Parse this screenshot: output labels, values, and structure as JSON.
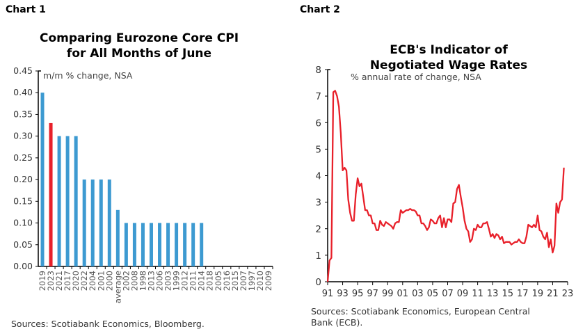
{
  "chart_data": [
    {
      "type": "bar",
      "label": "Chart 1",
      "title": "Comparing Eurozone Core CPI for All Months of June",
      "title_lines": [
        "Comparing Eurozone Core CPI",
        "for All Months of June"
      ],
      "units_note": "m/m % change, NSA",
      "source": "Sources: Scotiabank Economics, Bloomberg.",
      "categories": [
        "2019",
        "2023",
        "2021",
        "2017",
        "2020",
        "2022",
        "2004",
        "2001",
        "2000",
        "average",
        "2002",
        "2008",
        "1998",
        "2013",
        "2006",
        "2003",
        "1999",
        "2012",
        "2011",
        "2014",
        "2018",
        "2005",
        "2016",
        "2015",
        "2007",
        "1997",
        "2010",
        "2009"
      ],
      "values": [
        0.4,
        0.33,
        0.3,
        0.3,
        0.3,
        0.2,
        0.2,
        0.2,
        0.2,
        0.13,
        0.1,
        0.1,
        0.1,
        0.1,
        0.1,
        0.1,
        0.1,
        0.1,
        0.1,
        0.1,
        0,
        0,
        0,
        0,
        0,
        0,
        0,
        0
      ],
      "highlight_category": "2023",
      "ylim": [
        0,
        0.45
      ],
      "yticks": [
        "0.00",
        "0.05",
        "0.10",
        "0.15",
        "0.20",
        "0.25",
        "0.30",
        "0.35",
        "0.40",
        "0.45"
      ],
      "grid": false,
      "colors": {
        "bar": "#3d9ad1",
        "highlight": "#e8202a"
      }
    },
    {
      "type": "line",
      "label": "Chart 2",
      "title": "ECB's Indicator of Negotiated Wage Rates",
      "title_lines": [
        "ECB's Indicator of",
        "Negotiated Wage Rates"
      ],
      "units_note": "% annual rate of change, NSA",
      "source_lines": [
        "Sources: Scotiabank Economics, European Central",
        "Bank (ECB)."
      ],
      "ylim": [
        0,
        8
      ],
      "yticks": [
        "0",
        "1",
        "2",
        "3",
        "4",
        "5",
        "6",
        "7",
        "8"
      ],
      "xlim": [
        1991,
        2023
      ],
      "xticks": [
        "91",
        "93",
        "95",
        "97",
        "99",
        "01",
        "03",
        "05",
        "07",
        "09",
        "11",
        "13",
        "15",
        "17",
        "19",
        "21",
        "23"
      ],
      "grid": false,
      "colors": {
        "line": "#e8202a"
      },
      "x": [
        1991,
        1991.25,
        1991.5,
        1991.75,
        1992,
        1992.25,
        1992.5,
        1992.75,
        1993,
        1993.25,
        1993.5,
        1993.75,
        1994,
        1994.25,
        1994.5,
        1994.75,
        1995,
        1995.25,
        1995.5,
        1995.75,
        1996,
        1996.25,
        1996.5,
        1996.75,
        1997,
        1997.25,
        1997.5,
        1997.75,
        1998,
        1998.25,
        1998.5,
        1998.75,
        1999,
        1999.25,
        1999.5,
        1999.75,
        2000,
        2000.25,
        2000.5,
        2000.75,
        2001,
        2001.25,
        2001.5,
        2001.75,
        2002,
        2002.25,
        2002.5,
        2002.75,
        2003,
        2003.25,
        2003.5,
        2003.75,
        2004,
        2004.25,
        2004.5,
        2004.75,
        2005,
        2005.25,
        2005.5,
        2005.75,
        2006,
        2006.25,
        2006.5,
        2006.75,
        2007,
        2007.25,
        2007.5,
        2007.75,
        2008,
        2008.25,
        2008.5,
        2008.75,
        2009,
        2009.25,
        2009.5,
        2009.75,
        2010,
        2010.25,
        2010.5,
        2010.75,
        2011,
        2011.25,
        2011.5,
        2011.75,
        2012,
        2012.25,
        2012.5,
        2012.75,
        2013,
        2013.25,
        2013.5,
        2013.75,
        2014,
        2014.25,
        2014.5,
        2014.75,
        2015,
        2015.25,
        2015.5,
        2015.75,
        2016,
        2016.25,
        2016.5,
        2016.75,
        2017,
        2017.25,
        2017.5,
        2017.75,
        2018,
        2018.25,
        2018.5,
        2018.75,
        2019,
        2019.25,
        2019.5,
        2019.75,
        2020,
        2020.25,
        2020.5,
        2020.75,
        2021,
        2021.25,
        2021.5,
        2021.75,
        2022,
        2022.25,
        2022.5
      ],
      "y": [
        0,
        0.8,
        0.9,
        7.15,
        7.2,
        7.0,
        6.6,
        5.6,
        4.2,
        4.3,
        4.2,
        3.1,
        2.6,
        2.3,
        2.3,
        3.3,
        3.9,
        3.6,
        3.7,
        3.2,
        2.7,
        2.7,
        2.5,
        2.5,
        2.2,
        2.2,
        1.95,
        1.95,
        2.3,
        2.15,
        2.1,
        2.25,
        2.2,
        2.15,
        2.1,
        2.0,
        2.2,
        2.25,
        2.25,
        2.7,
        2.6,
        2.65,
        2.7,
        2.7,
        2.75,
        2.7,
        2.7,
        2.65,
        2.5,
        2.5,
        2.2,
        2.2,
        2.1,
        1.95,
        2.05,
        2.35,
        2.3,
        2.2,
        2.2,
        2.4,
        2.5,
        2.05,
        2.4,
        2.05,
        2.35,
        2.35,
        2.25,
        2.95,
        3.0,
        3.5,
        3.65,
        3.2,
        2.8,
        2.3,
        2.0,
        1.9,
        1.5,
        1.6,
        2.0,
        1.95,
        2.15,
        2.05,
        2.05,
        2.2,
        2.2,
        2.25,
        2.0,
        1.7,
        1.8,
        1.65,
        1.8,
        1.75,
        1.6,
        1.7,
        1.45,
        1.5,
        1.5,
        1.5,
        1.4,
        1.45,
        1.5,
        1.5,
        1.6,
        1.5,
        1.45,
        1.45,
        1.7,
        2.15,
        2.1,
        2.05,
        2.15,
        2.05,
        2.5,
        1.95,
        1.9,
        1.7,
        1.6,
        1.85,
        1.3,
        1.6,
        1.1,
        1.35,
        2.95,
        2.6,
        3.0,
        3.1,
        4.3
      ]
    }
  ]
}
